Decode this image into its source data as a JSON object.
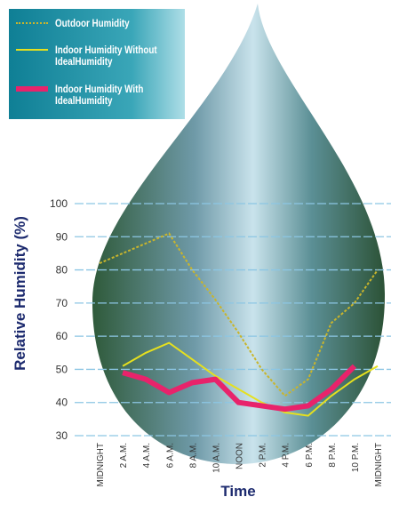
{
  "chart_data": {
    "type": "line",
    "y_label": "Relative Humidity (%)",
    "x_label": "Time",
    "categories": [
      "MIDNIGHT",
      "2 A.M.",
      "4 A.M.",
      "6 A.M.",
      "8 A.M.",
      "10 A.M.",
      "NOON",
      "2 P.M.",
      "4 P.M.",
      "6 P.M.",
      "8 P.M.",
      "10 P.M.",
      "MIDNIGHT"
    ],
    "series": [
      {
        "name": "Outdoor Humidity",
        "color": "#c9b52c",
        "style": "dotted",
        "values": [
          82,
          85,
          88,
          91,
          80,
          71,
          61,
          50,
          42,
          47,
          64,
          70,
          80
        ]
      },
      {
        "name": "Indoor Humidity Without IdealHumidity",
        "color": "#e6e01e",
        "style": "solid",
        "values": [
          null,
          51,
          55,
          58,
          53,
          48,
          44,
          40,
          37,
          36,
          42,
          47,
          51
        ]
      },
      {
        "name": "Indoor Humidity With IdealHumidity",
        "color": "#e8236b",
        "style": "thick",
        "values": [
          null,
          49,
          47,
          43,
          46,
          47,
          40,
          39,
          38,
          39,
          44,
          51,
          null
        ]
      }
    ],
    "ylim": [
      30,
      100
    ],
    "yticks": [
      30,
      40,
      50,
      60,
      70,
      80,
      90,
      100
    ],
    "grid": true
  }
}
